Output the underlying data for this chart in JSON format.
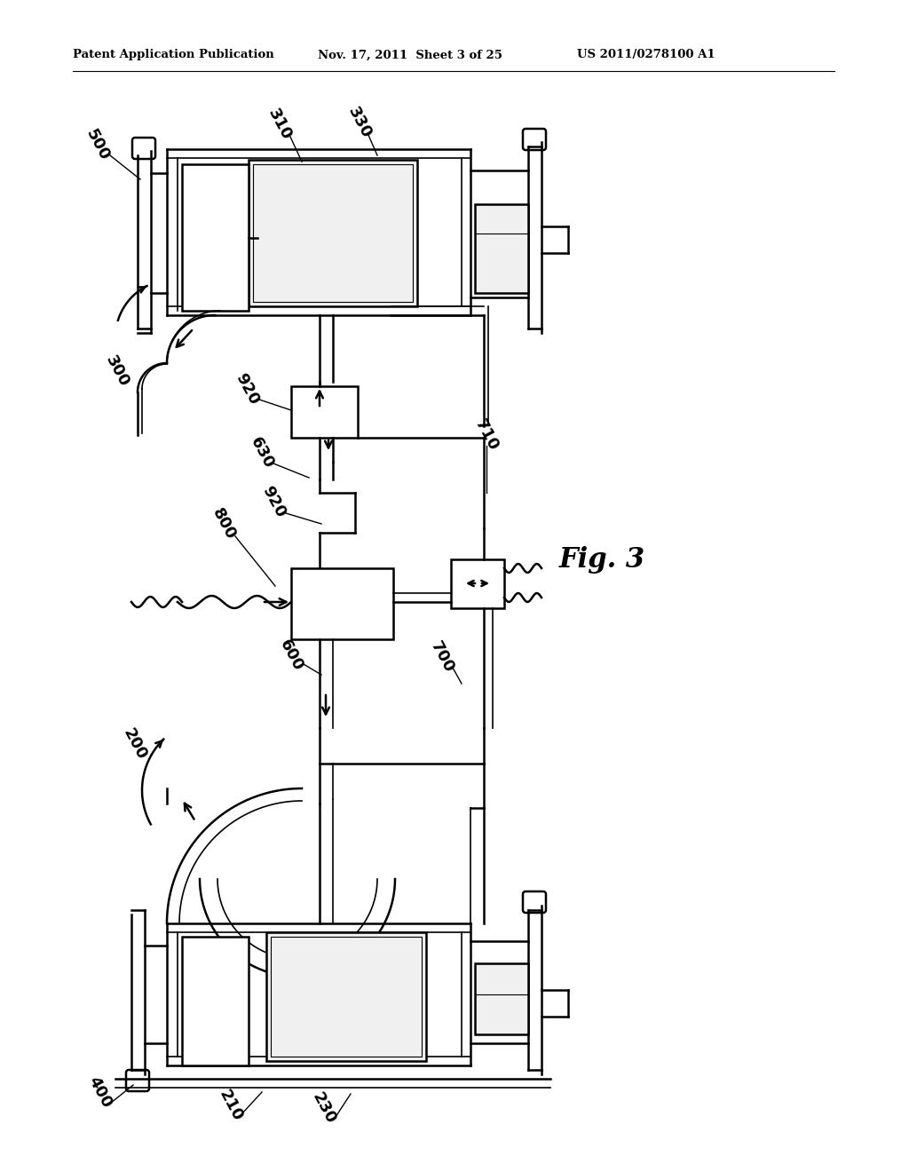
{
  "bg_color": "#ffffff",
  "header_left": "Patent Application Publication",
  "header_mid": "Nov. 17, 2011  Sheet 3 of 25",
  "header_right": "US 2011/0278100 A1",
  "fig_label": "Fig. 3"
}
